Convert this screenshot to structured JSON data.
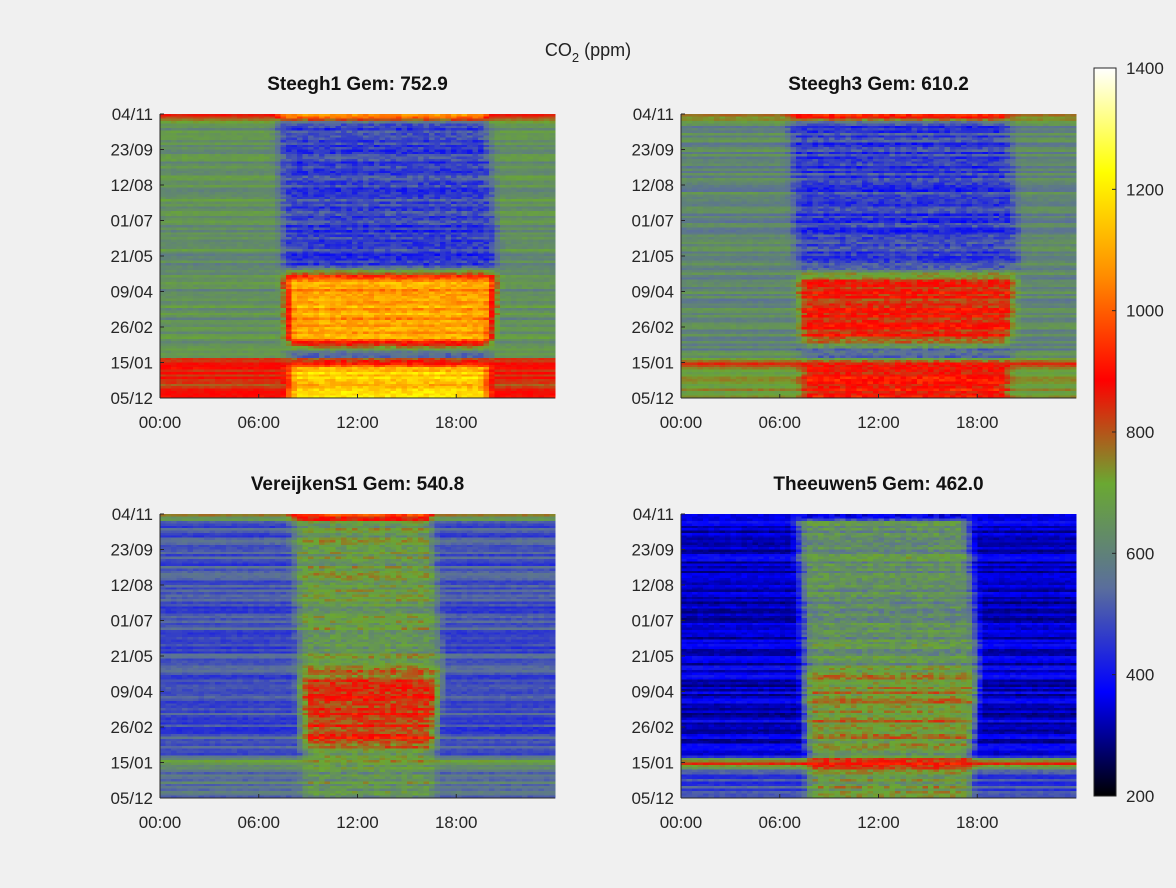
{
  "figure": {
    "title": "CO",
    "title_sub": "2",
    "title_unit": " (ppm)"
  },
  "chart_data": [
    {
      "type": "heatmap",
      "title": "Steegh1 Gem: 752.9",
      "mean": 752.9,
      "x_ticks": [
        "00:00",
        "06:00",
        "12:00",
        "18:00"
      ],
      "y_ticks": [
        "04/11",
        "23/09",
        "12/08",
        "01/07",
        "21/05",
        "09/04",
        "26/02",
        "15/01",
        "05/12"
      ],
      "pattern": {
        "base": 640,
        "day_start": 7.5,
        "day_end": 20.5,
        "day_value": 470,
        "evening_tail": 21.5,
        "spring_peak": 1200,
        "winter_peak": 1150,
        "winter_band": 930,
        "top_band": 1050,
        "noise": 55
      }
    },
    {
      "type": "heatmap",
      "title": "Steegh3 Gem: 610.2",
      "mean": 610.2,
      "x_ticks": [
        "00:00",
        "06:00",
        "12:00",
        "18:00"
      ],
      "y_ticks": [
        "04/11",
        "23/09",
        "12/08",
        "01/07",
        "21/05",
        "09/04",
        "26/02",
        "15/01",
        "05/12"
      ],
      "pattern": {
        "base": 610,
        "day_start": 7.0,
        "day_end": 20.5,
        "day_value": 470,
        "evening_tail": 22.0,
        "spring_peak": 920,
        "winter_peak": 900,
        "winter_band": 880,
        "top_band": 920,
        "noise": 55
      }
    },
    {
      "type": "heatmap",
      "title": "VereijkenS1 Gem: 540.8",
      "mean": 540.8,
      "x_ticks": [
        "00:00",
        "06:00",
        "12:00",
        "18:00"
      ],
      "y_ticks": [
        "04/11",
        "23/09",
        "12/08",
        "01/07",
        "21/05",
        "09/04",
        "26/02",
        "15/01",
        "05/12"
      ],
      "pattern": {
        "base": 500,
        "day_start": 8.5,
        "day_end": 17.0,
        "day_value": 680,
        "evening_tail": 18.5,
        "spring_peak": 880,
        "winter_peak": 660,
        "winter_band": 700,
        "top_band": 920,
        "noise": 60
      }
    },
    {
      "type": "heatmap",
      "title": "Theeuwen5 Gem: 462.0",
      "mean": 462.0,
      "x_ticks": [
        "00:00",
        "06:00",
        "12:00",
        "18:00"
      ],
      "y_ticks": [
        "04/11",
        "23/09",
        "12/08",
        "01/07",
        "21/05",
        "09/04",
        "26/02",
        "15/01",
        "05/12"
      ],
      "pattern": {
        "base": 340,
        "day_start": 7.5,
        "day_end": 18.0,
        "day_value": 640,
        "evening_tail": 18.5,
        "spring_peak": 760,
        "winter_peak": 700,
        "winter_band": 950,
        "top_band": 360,
        "noise": 60
      }
    }
  ],
  "colorbar": {
    "min": 200,
    "max": 1400,
    "ticks": [
      "200",
      "400",
      "600",
      "800",
      "1000",
      "1200",
      "1400"
    ],
    "stops": [
      "#000000",
      "#0000ff",
      "#5a6e9c",
      "#6aa832",
      "#ff0000",
      "#ff8c00",
      "#ffff00",
      "#ffffff"
    ]
  }
}
